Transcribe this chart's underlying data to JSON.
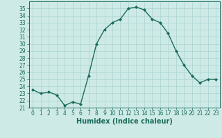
{
  "xlabel": "Humidex (Indice chaleur)",
  "x_values": [
    0,
    1,
    2,
    3,
    4,
    5,
    6,
    7,
    8,
    9,
    10,
    11,
    12,
    13,
    14,
    15,
    16,
    17,
    18,
    19,
    20,
    21,
    22,
    23
  ],
  "y_values": [
    23.5,
    23.0,
    23.2,
    22.8,
    21.3,
    21.8,
    21.5,
    25.5,
    30.0,
    32.0,
    33.0,
    33.5,
    35.0,
    35.2,
    34.8,
    33.5,
    33.0,
    31.5,
    29.0,
    27.0,
    25.5,
    24.5,
    25.0,
    25.0
  ],
  "line_color": "#1a6b5a",
  "marker": "D",
  "marker_size": 2.0,
  "bg_color": "#ceeae7",
  "grid_color": "#aad4d0",
  "ylim": [
    21,
    36
  ],
  "xlim": [
    -0.5,
    23.5
  ],
  "yticks": [
    21,
    22,
    23,
    24,
    25,
    26,
    27,
    28,
    29,
    30,
    31,
    32,
    33,
    34,
    35
  ],
  "xticks": [
    0,
    1,
    2,
    3,
    4,
    5,
    6,
    7,
    8,
    9,
    10,
    11,
    12,
    13,
    14,
    15,
    16,
    17,
    18,
    19,
    20,
    21,
    22,
    23
  ],
  "tick_fontsize": 5.5,
  "xlabel_fontsize": 7.0,
  "line_width": 1.0
}
